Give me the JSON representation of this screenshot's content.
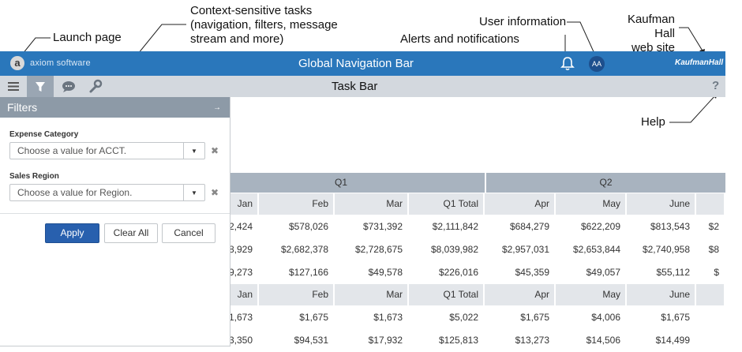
{
  "annotations": {
    "launch_page": "Launch page",
    "context_tasks": [
      "Context-sensitive tasks",
      "(navigation, filters, message",
      "stream and more)"
    ],
    "user_info": "User information",
    "alerts": "Alerts and notifications",
    "kaufman": [
      "Kaufman Hall",
      "web site"
    ],
    "help": "Help"
  },
  "nav": {
    "logo_letter": "a",
    "logo_text": "axiom software",
    "title": "Global Navigation Bar",
    "avatar": "AA",
    "brand": "KaufmanHall"
  },
  "taskbar": {
    "title": "Task Bar",
    "help": "?"
  },
  "filters": {
    "title": "Filters",
    "pin": "→",
    "expense_label": "Expense Category",
    "expense_placeholder": "Choose a value for ACCT.",
    "region_label": "Sales Region",
    "region_placeholder": "Choose a value for Region.",
    "clear_x": "✖",
    "apply": "Apply",
    "clear_all": "Clear All",
    "cancel": "Cancel"
  },
  "table": {
    "quarters": [
      "Q1",
      "Q2"
    ],
    "header1": [
      "Jan",
      "Feb",
      "Mar",
      "Q1 Total",
      "Apr",
      "May",
      "June"
    ],
    "rows1": [
      [
        "2,424",
        "$578,026",
        "$731,392",
        "$2,111,842",
        "$684,279",
        "$622,209",
        "$813,543",
        "$2"
      ],
      [
        "8,929",
        "$2,682,378",
        "$2,728,675",
        "$8,039,982",
        "$2,957,031",
        "$2,653,844",
        "$2,740,958",
        "$8"
      ],
      [
        "9,273",
        "$127,166",
        "$49,578",
        "$226,016",
        "$45,359",
        "$49,057",
        "$55,112",
        "$"
      ]
    ],
    "header2": [
      "Jan",
      "Feb",
      "Mar",
      "Q1 Total",
      "Apr",
      "May",
      "June"
    ],
    "rows2": [
      [
        "1,673",
        "$1,675",
        "$1,673",
        "$5,022",
        "$1,675",
        "$4,006",
        "$1,675"
      ],
      [
        "3,350",
        "$94,531",
        "$17,932",
        "$125,813",
        "$13,273",
        "$14,506",
        "$14,499"
      ]
    ]
  }
}
